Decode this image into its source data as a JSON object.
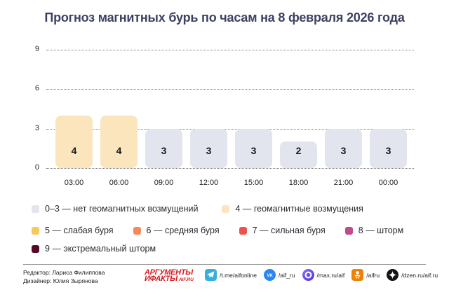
{
  "title": "Прогноз магнитных бурь по часам на 8 февраля 2026 года",
  "chart_data": {
    "type": "bar",
    "title": "Прогноз магнитных бурь по часам на 8 февраля 2026 года",
    "categories": [
      "03:00",
      "06:00",
      "09:00",
      "12:00",
      "15:00",
      "18:00",
      "21:00",
      "00:00"
    ],
    "values": [
      4,
      4,
      3,
      3,
      3,
      2,
      3,
      3
    ],
    "xlabel": "",
    "ylabel": "",
    "ylim": [
      0,
      9
    ],
    "yticks": [
      0,
      3,
      6,
      9
    ],
    "grid": "horizontal-dotted",
    "legend_position": "bottom",
    "bar_color_default": "#E2E4EE",
    "bar_color_level4": "#FAE5BC"
  },
  "legend": {
    "rows": [
      [
        {
          "color": "#E2E4EE",
          "label": "0–3 — нет геомагнитных возмущений"
        },
        {
          "color": "#FAE5BC",
          "label": "4 — геомагнитные возмущения"
        }
      ],
      [
        {
          "color": "#F6C95E",
          "label": "5 — слабая буря"
        },
        {
          "color": "#F58A58",
          "label": "6 — средняя буря"
        },
        {
          "color": "#F05050",
          "label": "7 — сильная буря"
        },
        {
          "color": "#C04A8C",
          "label": "8 — шторм"
        }
      ],
      [
        {
          "color": "#550A28",
          "label": "9 — экстремальный шторм"
        }
      ]
    ]
  },
  "footer": {
    "editor": "Редактор: Лариса Филиппова",
    "designer": "Дизайнер: Юлия Зырянова",
    "logo": {
      "line1": "АРГУМЕНТЫ",
      "line2": "ИФАКТЫ",
      "suffix": "AIF.RU",
      "color": "#D71920"
    },
    "socials": [
      {
        "icon": "telegram-icon",
        "label": "/t.me/aifonline",
        "color": "#37AEE2"
      },
      {
        "icon": "vk-icon",
        "label": "/aif_ru",
        "color": "#2787F5"
      },
      {
        "icon": "max-icon",
        "label": "/max.ru/aif",
        "color": "#5B44EF"
      },
      {
        "icon": "ok-icon",
        "label": "/aifru",
        "color": "#EE8208"
      },
      {
        "icon": "dzen-icon",
        "label": "/dzen.ru/aif.ru",
        "color": "#141414"
      }
    ]
  },
  "colors": {
    "title_text": "#3D4161",
    "body_text": "#1C1C1C",
    "gridline": "#7D7D7D",
    "bar_number": "#1A1A1A"
  }
}
